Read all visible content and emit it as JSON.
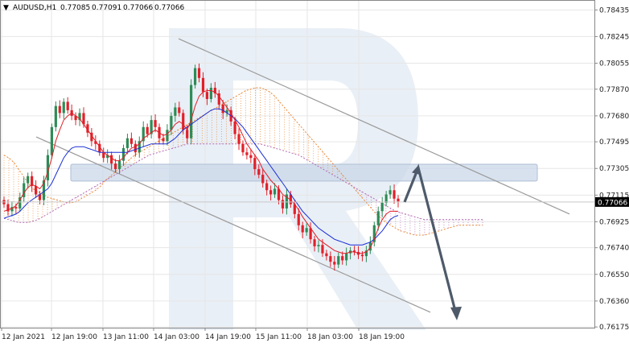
{
  "header": {
    "menu_glyph": "▼",
    "symbol": "AUDUSD,H1",
    "open": "0.77085",
    "high": "0.77091",
    "low": "0.77066",
    "close": "0.77066"
  },
  "chart_data": {
    "type": "candlestick",
    "symbol": "AUDUSD",
    "timeframe": "H1",
    "ylim": [
      0.7617,
      0.785
    ],
    "y_ticks": [
      "0.78435",
      "0.78245",
      "0.78055",
      "0.77870",
      "0.77680",
      "0.77495",
      "0.77305",
      "0.77115",
      "0.76925",
      "0.76740",
      "0.76550",
      "0.76360",
      "0.76175"
    ],
    "x_ticks": [
      "12 Jan 2021",
      "12 Jan 19:00",
      "13 Jan 11:00",
      "14 Jan 03:00",
      "14 Jan 19:00",
      "15 Jan 11:00",
      "18 Jan 03:00",
      "18 Jan 19:00"
    ],
    "current_price": "0.77066",
    "close_path": [
      0.7705,
      0.77,
      0.7703,
      0.7702,
      0.771,
      0.772,
      0.7725,
      0.7718,
      0.7712,
      0.7708,
      0.7722,
      0.774,
      0.776,
      0.7775,
      0.777,
      0.7778,
      0.7772,
      0.7768,
      0.7765,
      0.777,
      0.7762,
      0.7756,
      0.775,
      0.7748,
      0.7742,
      0.7738,
      0.774,
      0.7734,
      0.773,
      0.7736,
      0.7745,
      0.7752,
      0.7748,
      0.7742,
      0.775,
      0.776,
      0.7755,
      0.7765,
      0.776,
      0.7752,
      0.775,
      0.7758,
      0.7768,
      0.7774,
      0.777,
      0.7758,
      0.7752,
      0.779,
      0.7802,
      0.7795,
      0.7785,
      0.778,
      0.7788,
      0.7784,
      0.7776,
      0.777,
      0.7772,
      0.7764,
      0.7755,
      0.7748,
      0.7742,
      0.774,
      0.7738,
      0.773,
      0.7726,
      0.772,
      0.7715,
      0.7712,
      0.7716,
      0.7708,
      0.7702,
      0.7712,
      0.7705,
      0.7698,
      0.769,
      0.7685,
      0.7688,
      0.768,
      0.7675,
      0.7676,
      0.767,
      0.7668,
      0.7664,
      0.7662,
      0.7668,
      0.7665,
      0.767,
      0.7672,
      0.7671,
      0.7669,
      0.7668,
      0.7672,
      0.7678,
      0.769,
      0.77,
      0.7706,
      0.7712,
      0.7715,
      0.7709,
      0.7707
    ],
    "tenkan_path": [
      0.77,
      0.7701,
      0.7702,
      0.7704,
      0.7708,
      0.7713,
      0.7717,
      0.7719,
      0.7718,
      0.7716,
      0.772,
      0.7728,
      0.7738,
      0.775,
      0.7758,
      0.7765,
      0.7768,
      0.777,
      0.7768,
      0.7766,
      0.7762,
      0.7758,
      0.7754,
      0.775,
      0.7746,
      0.7742,
      0.774,
      0.7738,
      0.7736,
      0.7736,
      0.7738,
      0.7742,
      0.7745,
      0.7746,
      0.7748,
      0.7752,
      0.7754,
      0.7756,
      0.7758,
      0.7756,
      0.7754,
      0.7755,
      0.7758,
      0.7762,
      0.7764,
      0.7762,
      0.7758,
      0.7765,
      0.7775,
      0.7782,
      0.7785,
      0.7786,
      0.7786,
      0.7785,
      0.7782,
      0.7778,
      0.7774,
      0.777,
      0.7765,
      0.776,
      0.7754,
      0.7748,
      0.7744,
      0.774,
      0.7736,
      0.773,
      0.7726,
      0.7722,
      0.7719,
      0.7716,
      0.7712,
      0.771,
      0.7708,
      0.7705,
      0.7701,
      0.7696,
      0.7692,
      0.7688,
      0.7684,
      0.768,
      0.7678,
      0.7676,
      0.7674,
      0.7672,
      0.7671,
      0.767,
      0.767,
      0.7671,
      0.7671,
      0.767,
      0.767,
      0.7671,
      0.7674,
      0.768,
      0.7688,
      0.7694,
      0.7698,
      0.77,
      0.77,
      0.77
    ],
    "kijun_path": [
      0.7695,
      0.7696,
      0.7697,
      0.7698,
      0.77,
      0.7703,
      0.7706,
      0.7708,
      0.771,
      0.7712,
      0.7714,
      0.7716,
      0.772,
      0.7726,
      0.7732,
      0.7738,
      0.7742,
      0.7745,
      0.7746,
      0.7746,
      0.7746,
      0.7745,
      0.7744,
      0.7743,
      0.7742,
      0.7742,
      0.7742,
      0.7742,
      0.7742,
      0.7742,
      0.7742,
      0.7742,
      0.7743,
      0.7744,
      0.7745,
      0.7746,
      0.7747,
      0.7748,
      0.7748,
      0.7748,
      0.7748,
      0.7748,
      0.775,
      0.7752,
      0.7755,
      0.7758,
      0.776,
      0.7762,
      0.7764,
      0.7766,
      0.7768,
      0.777,
      0.7772,
      0.7773,
      0.7773,
      0.7772,
      0.777,
      0.7768,
      0.7766,
      0.7763,
      0.776,
      0.7756,
      0.7752,
      0.7748,
      0.7744,
      0.774,
      0.7736,
      0.7732,
      0.7728,
      0.7724,
      0.772,
      0.7716,
      0.7712,
      0.7708,
      0.7704,
      0.77,
      0.7697,
      0.7694,
      0.7691,
      0.7688,
      0.7686,
      0.7684,
      0.7682,
      0.768,
      0.7679,
      0.7678,
      0.7677,
      0.7676,
      0.7676,
      0.7676,
      0.7676,
      0.7677,
      0.7678,
      0.768,
      0.7683,
      0.7686,
      0.769,
      0.7694,
      0.7696,
      0.7697
    ],
    "senkou_a_path": [
      0.774,
      0.7738,
      0.7735,
      0.773,
      0.7725,
      0.772,
      0.7716,
      0.7714,
      0.7712,
      0.771,
      0.7709,
      0.7708,
      0.7707,
      0.7706,
      0.7706,
      0.7707,
      0.7709,
      0.7711,
      0.7713,
      0.7715,
      0.7718,
      0.7722,
      0.7725,
      0.7728,
      0.7731,
      0.7734,
      0.7737,
      0.774,
      0.7742,
      0.7744,
      0.7746,
      0.7748,
      0.775,
      0.7752,
      0.7754,
      0.7756,
      0.7758,
      0.776,
      0.7762,
      0.7764,
      0.7766,
      0.7768,
      0.777,
      0.7772,
      0.7774,
      0.7776,
      0.7778,
      0.778,
      0.7782,
      0.7784,
      0.7786,
      0.7787,
      0.7788,
      0.7788,
      0.7787,
      0.7785,
      0.7782,
      0.7778,
      0.7774,
      0.777,
      0.7766,
      0.7762,
      0.7758,
      0.7754,
      0.775,
      0.7746,
      0.7742,
      0.7738,
      0.7734,
      0.773,
      0.7726,
      0.7722,
      0.7718,
      0.7714,
      0.771,
      0.7706,
      0.7702,
      0.7698,
      0.7695,
      0.7692,
      0.769,
      0.7688,
      0.7686,
      0.7685,
      0.7684,
      0.7683,
      0.7683,
      0.7683,
      0.7684,
      0.7685,
      0.7686,
      0.7687,
      0.7688,
      0.7689,
      0.769,
      0.769,
      0.769,
      0.769,
      0.769,
      0.769
    ],
    "senkou_b_path": [
      0.7695,
      0.7694,
      0.7693,
      0.7692,
      0.7692,
      0.7692,
      0.7693,
      0.7694,
      0.7696,
      0.7698,
      0.77,
      0.7702,
      0.7704,
      0.7706,
      0.7708,
      0.771,
      0.7712,
      0.7714,
      0.7716,
      0.7718,
      0.772,
      0.7722,
      0.7724,
      0.7726,
      0.7728,
      0.773,
      0.7732,
      0.7734,
      0.7736,
      0.7738,
      0.774,
      0.7741,
      0.7742,
      0.7743,
      0.7744,
      0.7745,
      0.7746,
      0.7747,
      0.7748,
      0.7748,
      0.7748,
      0.7748,
      0.7748,
      0.7748,
      0.7748,
      0.7748,
      0.7748,
      0.7748,
      0.7748,
      0.7748,
      0.7748,
      0.7748,
      0.7748,
      0.7748,
      0.7747,
      0.7746,
      0.7745,
      0.7744,
      0.7743,
      0.7742,
      0.7741,
      0.774,
      0.7738,
      0.7736,
      0.7734,
      0.7732,
      0.773,
      0.7728,
      0.7726,
      0.7724,
      0.7722,
      0.772,
      0.7718,
      0.7716,
      0.7714,
      0.7712,
      0.771,
      0.7708,
      0.7706,
      0.7704,
      0.7702,
      0.77,
      0.7699,
      0.7698,
      0.7697,
      0.7696,
      0.7695,
      0.7694,
      0.7694,
      0.7694,
      0.7694,
      0.7694,
      0.7694,
      0.7694,
      0.7694,
      0.7694,
      0.7694,
      0.7694,
      0.7694,
      0.7694
    ],
    "channel_upper": {
      "from": [
        0,
        0.7823
      ],
      "to": [
        1,
        0.7698
      ]
    },
    "channel_lower": {
      "from": [
        0,
        0.7753
      ],
      "to": [
        1,
        0.7628
      ]
    },
    "resistance_zone": [
      0.77215,
      0.77335
    ],
    "forecast_path": [
      0.77066,
      0.7731,
      0.76245
    ],
    "colors": {
      "bull": "#2e8b57",
      "bear": "#e0202a",
      "tenkan": "#e0202a",
      "kijun": "#1a2fd6",
      "senkou_a": "#e88a3a",
      "senkou_b": "#b36ab3",
      "channel": "#9a9a9a",
      "zone_fill": "#c8d6e8",
      "arrow": "#4e5a6a",
      "grid": "#e6e6e6",
      "price_tag": "#000000"
    }
  }
}
